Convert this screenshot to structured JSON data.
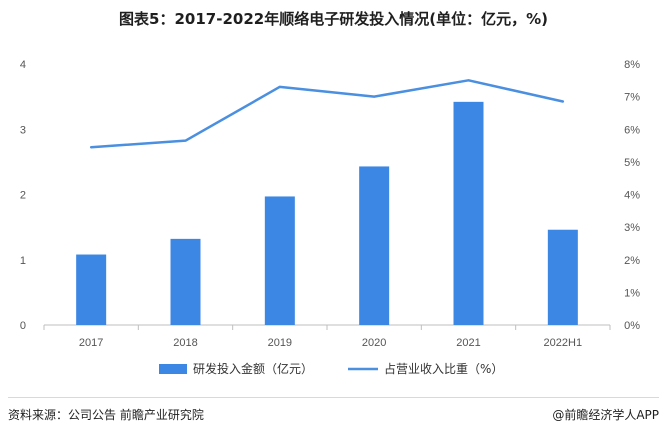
{
  "title": "图表5：2017-2022年顺络电子研发投入情况(单位：亿元，%)",
  "source": "资料来源：公司公告 前瞻产业研究院",
  "brand": "@前瞻经济学人APP",
  "colors": {
    "bar": "#3c86e4",
    "line": "#4a8fe0",
    "axis": "#bfbfbf"
  },
  "chart_data": {
    "type": "bar",
    "categories": [
      "2017",
      "2018",
      "2019",
      "2020",
      "2021",
      "2022H1"
    ],
    "series": [
      {
        "name": "研发投入金额（亿元）",
        "type": "bar",
        "axis": "left",
        "values": [
          1.08,
          1.32,
          1.97,
          2.43,
          3.42,
          1.46
        ]
      },
      {
        "name": "占营业收入比重（%）",
        "type": "line",
        "axis": "right",
        "values": [
          5.45,
          5.65,
          7.3,
          7.0,
          7.5,
          6.85
        ]
      }
    ],
    "ylim_left": [
      0,
      4
    ],
    "yticks_left": [
      "0",
      "1",
      "2",
      "3",
      "4"
    ],
    "ylim_right": [
      0,
      8
    ],
    "yticks_right": [
      "0%",
      "1%",
      "2%",
      "3%",
      "4%",
      "5%",
      "6%",
      "7%",
      "8%"
    ],
    "legend_position": "bottom",
    "grid": false
  }
}
